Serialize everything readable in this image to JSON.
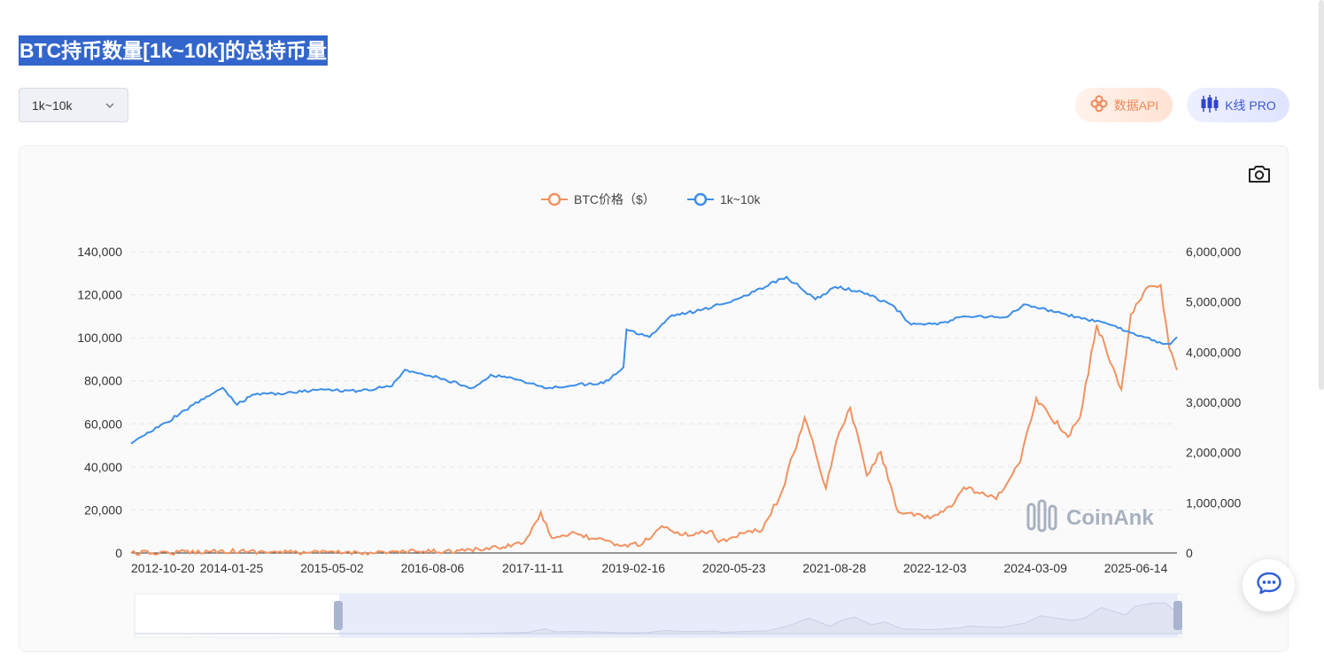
{
  "page": {
    "title": "BTC持币数量[1k~10k]的总持币量"
  },
  "controls": {
    "range_select_value": "1k~10k",
    "api_button_label": "数据API",
    "kline_button_label": "K线 PRO"
  },
  "colors": {
    "price_series": "#f2925f",
    "holdings_series": "#3d8ee8",
    "title_bg": "#3366cc"
  },
  "icons": {
    "range_select": "chevron-down-icon",
    "api_button": "api-icon",
    "kline_button": "candlestick-icon",
    "screenshot": "camera-icon",
    "chat": "chat-icon"
  },
  "watermark": "CoinAnk",
  "chart_data": {
    "type": "line",
    "title": "",
    "grid": "horizontal dashed",
    "legend_position": "top-center",
    "x_ticks": [
      "2012-10-20",
      "2014-01-25",
      "2015-05-02",
      "2016-08-06",
      "2017-11-11",
      "2019-02-16",
      "2020-05-23",
      "2021-08-28",
      "2022-12-03",
      "2024-03-09",
      "2025-06-14"
    ],
    "x_range": [
      "2012-10-20",
      "2025-12-20"
    ],
    "y_left": {
      "min": 0,
      "max": 140000,
      "ticks": [
        "0",
        "20,000",
        "40,000",
        "60,000",
        "80,000",
        "100,000",
        "120,000",
        "140,000"
      ]
    },
    "y_right": {
      "min": 0,
      "max": 6000000,
      "ticks": [
        "0",
        "1,000,000",
        "2,000,000",
        "3,000,000",
        "4,000,000",
        "5,000,000",
        "6,000,000"
      ]
    },
    "series": [
      {
        "name": "BTC价格（$）",
        "axis": "left",
        "points": [
          [
            "2012-10-20",
            12
          ],
          [
            "2013-04-10",
            150
          ],
          [
            "2013-12-01",
            1000
          ],
          [
            "2014-06-01",
            600
          ],
          [
            "2015-01-15",
            220
          ],
          [
            "2015-10-01",
            240
          ],
          [
            "2016-06-01",
            600
          ],
          [
            "2017-01-01",
            1000
          ],
          [
            "2017-06-01",
            2500
          ],
          [
            "2017-10-01",
            5000
          ],
          [
            "2017-12-17",
            19000
          ],
          [
            "2018-02-05",
            7000
          ],
          [
            "2018-05-01",
            9000
          ],
          [
            "2018-09-01",
            6500
          ],
          [
            "2018-12-15",
            3300
          ],
          [
            "2019-04-01",
            4500
          ],
          [
            "2019-06-26",
            12500
          ],
          [
            "2019-10-01",
            8300
          ],
          [
            "2020-02-12",
            10300
          ],
          [
            "2020-03-13",
            5000
          ],
          [
            "2020-07-01",
            9200
          ],
          [
            "2020-10-01",
            10800
          ],
          [
            "2020-12-31",
            29000
          ],
          [
            "2021-04-13",
            63000
          ],
          [
            "2021-07-20",
            30000
          ],
          [
            "2021-09-06",
            52000
          ],
          [
            "2021-11-09",
            67500
          ],
          [
            "2022-01-24",
            36000
          ],
          [
            "2022-03-29",
            47000
          ],
          [
            "2022-06-18",
            19000
          ],
          [
            "2022-11-10",
            16000
          ],
          [
            "2023-03-01",
            23000
          ],
          [
            "2023-04-14",
            30500
          ],
          [
            "2023-09-11",
            25000
          ],
          [
            "2023-12-31",
            42500
          ],
          [
            "2024-03-13",
            72000
          ],
          [
            "2024-08-05",
            54000
          ],
          [
            "2024-09-30",
            63000
          ],
          [
            "2024-12-16",
            106000
          ],
          [
            "2025-04-08",
            76000
          ],
          [
            "2025-05-22",
            111000
          ],
          [
            "2025-08-13",
            124000
          ],
          [
            "2025-10-06",
            124500
          ],
          [
            "2025-11-15",
            95000
          ],
          [
            "2025-12-05",
            90000
          ],
          [
            "2025-12-20",
            85000
          ]
        ]
      },
      {
        "name": "1k~10k",
        "axis": "right",
        "points": [
          [
            "2012-10-20",
            2180000
          ],
          [
            "2013-04-01",
            2600000
          ],
          [
            "2013-08-01",
            2950000
          ],
          [
            "2013-12-15",
            3290000
          ],
          [
            "2014-02-20",
            2950000
          ],
          [
            "2014-05-01",
            3150000
          ],
          [
            "2014-10-01",
            3180000
          ],
          [
            "2015-03-01",
            3250000
          ],
          [
            "2015-09-01",
            3230000
          ],
          [
            "2016-02-01",
            3320000
          ],
          [
            "2016-04-01",
            3650000
          ],
          [
            "2016-09-01",
            3500000
          ],
          [
            "2017-02-01",
            3280000
          ],
          [
            "2017-05-01",
            3550000
          ],
          [
            "2017-09-01",
            3450000
          ],
          [
            "2018-01-15",
            3280000
          ],
          [
            "2018-06-01",
            3350000
          ],
          [
            "2018-10-01",
            3380000
          ],
          [
            "2019-01-01",
            3700000
          ],
          [
            "2019-01-15",
            4450000
          ],
          [
            "2019-05-01",
            4300000
          ],
          [
            "2019-08-01",
            4700000
          ],
          [
            "2020-01-01",
            4850000
          ],
          [
            "2020-06-01",
            5050000
          ],
          [
            "2021-01-20",
            5500000
          ],
          [
            "2021-06-01",
            5050000
          ],
          [
            "2021-09-01",
            5300000
          ],
          [
            "2022-01-01",
            5200000
          ],
          [
            "2022-06-01",
            4900000
          ],
          [
            "2022-08-15",
            4550000
          ],
          [
            "2022-12-15",
            4550000
          ],
          [
            "2023-04-01",
            4700000
          ],
          [
            "2023-11-01",
            4700000
          ],
          [
            "2024-01-15",
            4950000
          ],
          [
            "2024-06-01",
            4800000
          ],
          [
            "2024-11-01",
            4650000
          ],
          [
            "2025-03-01",
            4530000
          ],
          [
            "2025-06-01",
            4380000
          ],
          [
            "2025-10-01",
            4200000
          ],
          [
            "2025-11-20",
            4160000
          ],
          [
            "2025-12-20",
            4300000
          ]
        ]
      }
    ]
  }
}
